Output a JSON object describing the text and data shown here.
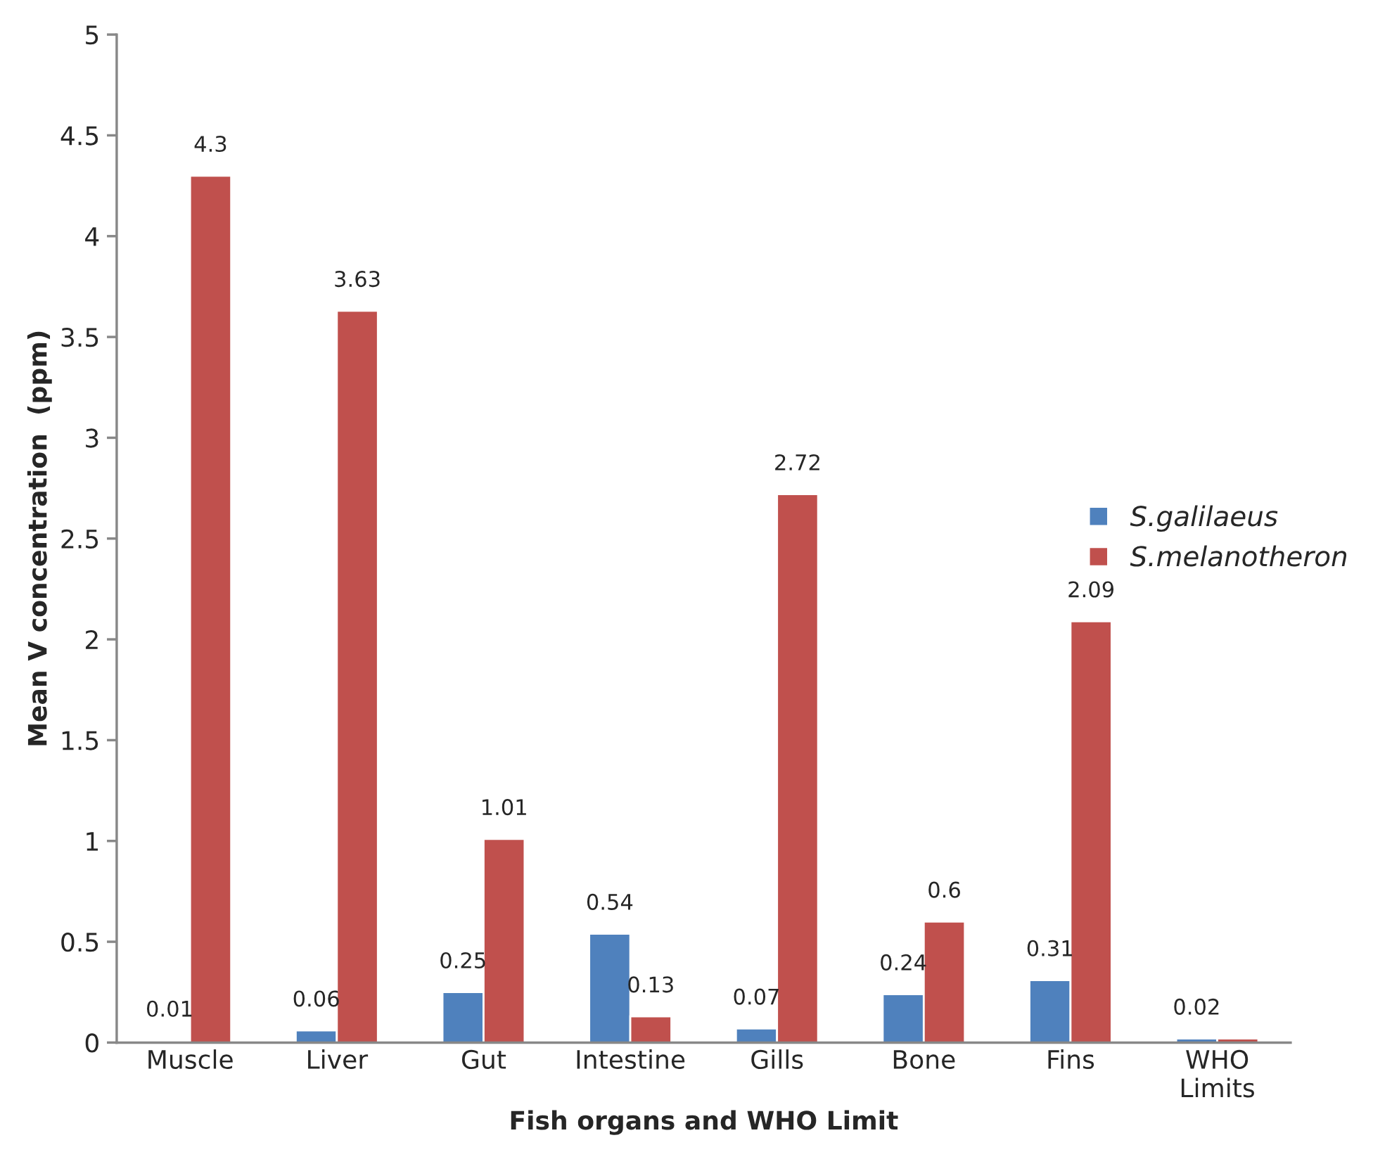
{
  "chart_data": {
    "type": "bar",
    "xlabel": "Fish organs and WHO Limit",
    "ylabel": "Mean V concentration  (ppm)",
    "categories": [
      "Muscle",
      "Liver",
      "Gut",
      "Intestine",
      "Gills",
      "Bone",
      "Fins",
      "WHO\nLimits"
    ],
    "series": [
      {
        "name": "S.galilaeus",
        "color": "#4f81bd",
        "values": [
          0.01,
          0.06,
          0.25,
          0.54,
          0.07,
          0.24,
          0.31,
          0.02
        ],
        "value_labels": [
          "0.01",
          "0.06",
          "0.25",
          "0.54",
          "0.07",
          "0.24",
          "0.31",
          "0.02"
        ]
      },
      {
        "name": "S.melanotheron",
        "color": "#c0504d",
        "values": [
          4.3,
          3.63,
          1.01,
          0.13,
          2.72,
          0.6,
          2.09,
          0.02
        ],
        "value_labels": [
          "4.3",
          "3.63",
          "1.01",
          "0.13",
          "2.72",
          "0.6",
          "2.09",
          null
        ]
      }
    ],
    "ylim": [
      0,
      5
    ],
    "yticks": [
      0,
      0.5,
      1,
      1.5,
      2,
      2.5,
      3,
      3.5,
      4,
      4.5,
      5
    ],
    "grid": false,
    "legend": "right"
  }
}
